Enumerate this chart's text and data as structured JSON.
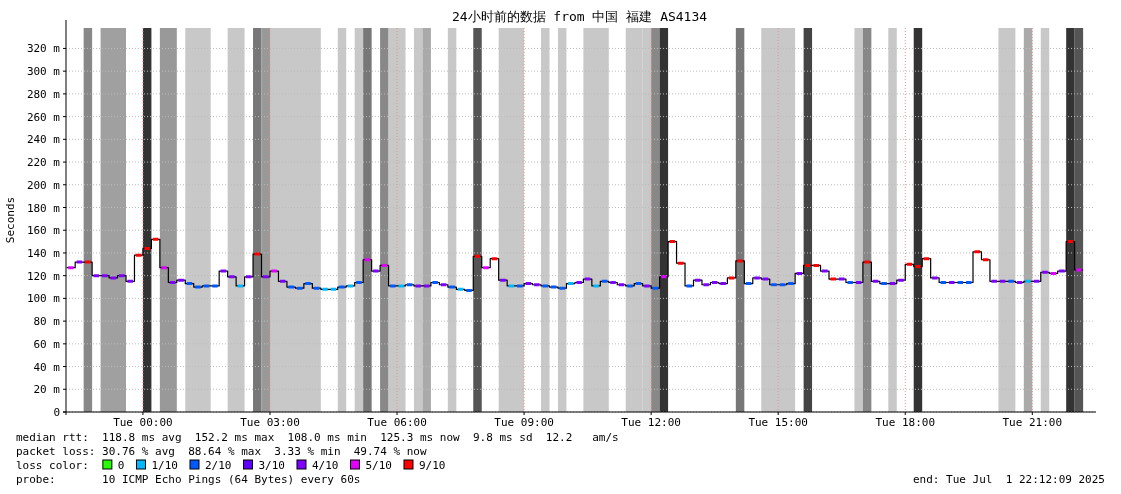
{
  "chart_data": {
    "type": "step",
    "title": "24小时前的数据 from 中国 福建 AS4134",
    "ylabel": "Seconds",
    "x": [
      "2025-06-30T22:12",
      "2025-06-30T22:24",
      "2025-06-30T22:36",
      "2025-06-30T22:48",
      "2025-06-30T23:00",
      "2025-06-30T23:12",
      "2025-06-30T23:24",
      "2025-06-30T23:36",
      "2025-06-30T23:48",
      "2025-07-01T00:00",
      "2025-07-01T00:12",
      "2025-07-01T00:24",
      "2025-07-01T00:36",
      "2025-07-01T00:48",
      "2025-07-01T01:00",
      "2025-07-01T01:12",
      "2025-07-01T01:24",
      "2025-07-01T01:36",
      "2025-07-01T01:48",
      "2025-07-01T02:00",
      "2025-07-01T02:12",
      "2025-07-01T02:24",
      "2025-07-01T02:36",
      "2025-07-01T02:48",
      "2025-07-01T03:00",
      "2025-07-01T03:12",
      "2025-07-01T03:24",
      "2025-07-01T03:36",
      "2025-07-01T03:48",
      "2025-07-01T04:00",
      "2025-07-01T04:12",
      "2025-07-01T04:24",
      "2025-07-01T04:36",
      "2025-07-01T04:48",
      "2025-07-01T05:00",
      "2025-07-01T05:12",
      "2025-07-01T05:24",
      "2025-07-01T05:36",
      "2025-07-01T05:48",
      "2025-07-01T06:00",
      "2025-07-01T06:12",
      "2025-07-01T06:24",
      "2025-07-01T06:36",
      "2025-07-01T06:48",
      "2025-07-01T07:00",
      "2025-07-01T07:12",
      "2025-07-01T07:24",
      "2025-07-01T07:36",
      "2025-07-01T07:48",
      "2025-07-01T08:00",
      "2025-07-01T08:12",
      "2025-07-01T08:24",
      "2025-07-01T08:36",
      "2025-07-01T08:48",
      "2025-07-01T09:00",
      "2025-07-01T09:12",
      "2025-07-01T09:24",
      "2025-07-01T09:36",
      "2025-07-01T09:48",
      "2025-07-01T10:00",
      "2025-07-01T10:12",
      "2025-07-01T10:24",
      "2025-07-01T10:36",
      "2025-07-01T10:48",
      "2025-07-01T11:00",
      "2025-07-01T11:12",
      "2025-07-01T11:24",
      "2025-07-01T11:36",
      "2025-07-01T11:48",
      "2025-07-01T12:00",
      "2025-07-01T12:12",
      "2025-07-01T12:24",
      "2025-07-01T12:36",
      "2025-07-01T12:48",
      "2025-07-01T13:00",
      "2025-07-01T13:12",
      "2025-07-01T13:24",
      "2025-07-01T13:36",
      "2025-07-01T13:48",
      "2025-07-01T14:00",
      "2025-07-01T14:12",
      "2025-07-01T14:24",
      "2025-07-01T14:36",
      "2025-07-01T14:48",
      "2025-07-01T15:00",
      "2025-07-01T15:12",
      "2025-07-01T15:24",
      "2025-07-01T15:36",
      "2025-07-01T15:48",
      "2025-07-01T16:00",
      "2025-07-01T16:12",
      "2025-07-01T16:24",
      "2025-07-01T16:36",
      "2025-07-01T16:48",
      "2025-07-01T17:00",
      "2025-07-01T17:12",
      "2025-07-01T17:24",
      "2025-07-01T17:36",
      "2025-07-01T17:48",
      "2025-07-01T18:00",
      "2025-07-01T18:12",
      "2025-07-01T18:24",
      "2025-07-01T18:36",
      "2025-07-01T18:48",
      "2025-07-01T19:00",
      "2025-07-01T19:12",
      "2025-07-01T19:24",
      "2025-07-01T19:36",
      "2025-07-01T19:48",
      "2025-07-01T20:00",
      "2025-07-01T20:12",
      "2025-07-01T20:24",
      "2025-07-01T20:36",
      "2025-07-01T20:48",
      "2025-07-01T21:00",
      "2025-07-01T21:12",
      "2025-07-01T21:24",
      "2025-07-01T21:36",
      "2025-07-01T21:48",
      "2025-07-01T22:00",
      "2025-07-01T22:12"
    ],
    "series": [
      {
        "color": "#000000",
        "values": [
          127,
          132,
          132,
          120,
          120,
          118,
          120,
          115,
          138,
          144,
          152,
          127,
          114,
          116,
          113,
          110,
          111,
          111,
          124,
          119,
          111,
          119,
          139,
          119,
          124,
          115,
          110,
          109,
          113,
          109,
          108,
          108,
          110,
          111,
          114,
          134,
          124,
          129,
          111,
          111,
          112,
          111,
          111,
          114,
          112,
          110,
          108,
          107,
          137,
          127,
          135,
          116,
          111,
          111,
          113,
          112,
          111,
          110,
          109,
          113,
          114,
          117,
          111,
          115,
          114,
          112,
          111,
          113,
          111,
          109,
          119,
          150,
          131,
          111,
          116,
          112,
          114,
          113,
          118,
          133,
          113,
          118,
          117,
          112,
          112,
          113,
          122,
          129,
          129,
          124,
          117,
          117,
          114,
          114,
          132,
          115,
          113,
          113,
          116,
          130,
          128,
          135,
          118,
          114,
          114,
          114,
          114,
          141,
          134,
          115,
          115,
          115,
          114,
          115,
          115,
          123,
          122,
          124,
          150,
          125,
          125
        ]
      },
      {
        "name": "0",
        "color": "#26ff00",
        "values": [
          null,
          null,
          null,
          null,
          null,
          null,
          null,
          null,
          null,
          null,
          null,
          null,
          null,
          null,
          null,
          null,
          null,
          null,
          null,
          null,
          null,
          null,
          null,
          null,
          null,
          null,
          null,
          null,
          null,
          null,
          null,
          null,
          null,
          null,
          null,
          null,
          null,
          null,
          null,
          null,
          null,
          null,
          null,
          null,
          null,
          null,
          null,
          null,
          null,
          null,
          null,
          null,
          null,
          null,
          null,
          null,
          null,
          null,
          null,
          null,
          null,
          null,
          null,
          null,
          null,
          null,
          null,
          null,
          null,
          null,
          null,
          null,
          null,
          null,
          null,
          null,
          null,
          null,
          null,
          null,
          null,
          null,
          null,
          null,
          null,
          null,
          null,
          null,
          null,
          null,
          null,
          null,
          null,
          null,
          null,
          null,
          null,
          null,
          null,
          null,
          null,
          null,
          null,
          null,
          null,
          null,
          null,
          null,
          null,
          null,
          null,
          null,
          null,
          null,
          null,
          null,
          null,
          null,
          null,
          null,
          null
        ]
      },
      {
        "name": "1/10",
        "color": "#00b8ff",
        "x": [
          "2025-07-01T02:18",
          "2025-07-01T04:18",
          "2025-07-01T04:30",
          "2025-07-01T04:54",
          "2025-07-01T06:06",
          "2025-07-01T07:30",
          "2025-07-01T08:42",
          "2025-07-01T10:06",
          "2025-07-01T10:42",
          "2025-07-01T20:54"
        ],
        "values": [
          111,
          108,
          108,
          111,
          111,
          108,
          111,
          113,
          111,
          115
        ]
      },
      {
        "name": "2/10",
        "color": "#0059ff",
        "x": [
          "2025-07-01T01:06",
          "2025-07-01T01:18",
          "2025-07-01T01:30",
          "2025-07-01T01:42",
          "2025-07-01T03:30",
          "2025-07-01T03:42",
          "2025-07-01T03:54",
          "2025-07-01T04:06",
          "2025-07-01T04:42",
          "2025-07-01T05:06",
          "2025-07-01T05:54",
          "2025-07-01T06:18",
          "2025-07-01T06:54",
          "2025-07-01T07:18",
          "2025-07-01T07:42",
          "2025-07-01T08:54",
          "2025-07-01T09:30",
          "2025-07-01T09:42",
          "2025-07-01T09:54",
          "2025-07-01T10:54",
          "2025-07-01T11:30",
          "2025-07-01T11:42",
          "2025-07-01T12:06",
          "2025-07-01T12:54",
          "2025-07-01T14:18",
          "2025-07-01T14:54",
          "2025-07-01T15:06",
          "2025-07-01T15:18",
          "2025-07-01T16:42",
          "2025-07-01T17:30",
          "2025-07-01T18:54",
          "2025-07-01T19:18",
          "2025-07-01T19:30",
          "2025-07-01T20:30"
        ],
        "values": [
          113,
          110,
          111,
          111,
          110,
          109,
          113,
          109,
          110,
          114,
          111,
          112,
          114,
          110,
          107,
          111,
          111,
          110,
          109,
          115,
          111,
          113,
          109,
          111,
          113,
          112,
          112,
          113,
          114,
          113,
          114,
          114,
          114,
          115
        ]
      },
      {
        "name": "3/10",
        "color": "#5e00ff",
        "values": [
          null,
          null,
          null,
          null,
          null,
          null,
          null,
          null,
          null,
          null,
          null,
          null,
          null,
          null,
          null,
          null,
          null,
          null,
          null,
          null,
          null,
          null,
          null,
          null,
          null,
          null,
          null,
          null,
          null,
          null,
          null,
          null,
          null,
          null,
          null,
          null,
          null,
          null,
          null,
          null,
          null,
          null,
          null,
          null,
          null,
          null,
          null,
          null,
          null,
          null,
          null,
          null,
          null,
          null,
          null,
          null,
          null,
          null,
          null,
          null,
          null,
          null,
          null,
          null,
          null,
          null,
          null,
          null,
          null,
          null,
          null,
          null,
          null,
          null,
          null,
          null,
          null,
          null,
          null,
          null,
          null,
          null,
          null,
          null,
          null,
          null,
          null,
          null,
          null,
          null,
          null,
          null,
          null,
          null,
          null,
          null,
          null,
          null,
          null,
          null,
          null,
          null,
          null,
          null,
          null,
          null,
          null,
          null,
          null,
          null,
          null,
          null,
          null,
          null,
          null,
          null,
          null,
          null,
          null,
          null,
          null
        ]
      },
      {
        "name": "4/10",
        "color": "#7e00ff",
        "x": [
          "2025-06-30T22:30",
          "2025-06-30T22:54",
          "2025-06-30T23:06",
          "2025-06-30T23:18",
          "2025-06-30T23:30",
          "2025-06-30T23:42",
          "2025-07-01T00:42",
          "2025-07-01T00:54",
          "2025-07-01T01:54",
          "2025-07-01T02:06",
          "2025-07-01T02:30",
          "2025-07-01T02:54",
          "2025-07-01T03:18",
          "2025-07-01T05:30",
          "2025-07-01T06:30",
          "2025-07-01T06:42",
          "2025-07-01T07:06",
          "2025-07-01T08:30",
          "2025-07-01T09:06",
          "2025-07-01T09:18",
          "2025-07-01T10:18",
          "2025-07-01T10:30",
          "2025-07-01T11:06",
          "2025-07-01T11:18",
          "2025-07-01T11:54",
          "2025-07-01T13:06",
          "2025-07-01T13:18",
          "2025-07-01T13:30",
          "2025-07-01T13:42",
          "2025-07-01T14:30",
          "2025-07-01T14:42",
          "2025-07-01T15:30",
          "2025-07-01T16:06",
          "2025-07-01T16:30",
          "2025-07-01T16:54",
          "2025-07-01T17:18",
          "2025-07-01T17:42",
          "2025-07-01T17:54",
          "2025-07-01T18:42",
          "2025-07-01T19:06",
          "2025-07-01T20:06",
          "2025-07-01T20:18",
          "2025-07-01T20:42",
          "2025-07-01T21:06",
          "2025-07-01T21:18",
          "2025-07-01T21:42"
        ],
        "values": [
          132,
          120,
          120,
          118,
          120,
          115,
          114,
          116,
          124,
          119,
          119,
          119,
          115,
          124,
          111,
          111,
          112,
          116,
          113,
          112,
          114,
          117,
          114,
          112,
          111,
          116,
          112,
          114,
          113,
          118,
          117,
          122,
          124,
          117,
          114,
          115,
          113,
          116,
          118,
          114,
          115,
          115,
          114,
          115,
          123,
          124
        ]
      },
      {
        "name": "5/10",
        "color": "#e000ff",
        "x": [
          "2025-06-30T22:18",
          "2025-07-01T00:30",
          "2025-07-01T03:06",
          "2025-07-01T05:18",
          "2025-07-01T05:42",
          "2025-07-01T08:06",
          "2025-07-01T12:18",
          "2025-07-01T21:30",
          "2025-07-01T22:06"
        ],
        "values": [
          127,
          127,
          124,
          134,
          129,
          127,
          119,
          122,
          125
        ]
      },
      {
        "name": "9/10",
        "color": "#ff0000",
        "x": [
          "2025-06-30T22:42",
          "2025-06-30T23:54",
          "2025-07-01T00:06",
          "2025-07-01T00:18",
          "2025-07-01T02:42",
          "2025-07-01T07:54",
          "2025-07-01T08:18",
          "2025-07-01T12:30",
          "2025-07-01T12:42",
          "2025-07-01T13:54",
          "2025-07-01T14:06",
          "2025-07-01T15:42",
          "2025-07-01T15:54",
          "2025-07-01T16:18",
          "2025-07-01T17:06",
          "2025-07-01T18:06",
          "2025-07-01T18:18",
          "2025-07-01T18:30",
          "2025-07-01T19:42",
          "2025-07-01T19:54",
          "2025-07-01T21:54"
        ],
        "values": [
          132,
          138,
          144,
          152,
          139,
          137,
          135,
          150,
          131,
          118,
          133,
          129,
          129,
          117,
          132,
          130,
          128,
          135,
          141,
          134,
          150
        ]
      }
    ],
    "bands": [
      {
        "axis": "x",
        "from": "2025-06-30T22:36",
        "to": "2025-06-30T22:48",
        "color": "#888888"
      },
      {
        "axis": "x",
        "from": "2025-06-30T23:00",
        "to": "2025-06-30T23:36",
        "color": "#a0a0a0"
      },
      {
        "axis": "x",
        "from": "2025-07-01T00:00",
        "to": "2025-07-01T00:12",
        "color": "#333333"
      },
      {
        "axis": "x",
        "from": "2025-07-01T00:24",
        "to": "2025-07-01T00:48",
        "color": "#999999"
      },
      {
        "axis": "x",
        "from": "2025-07-01T01:00",
        "to": "2025-07-01T01:36",
        "color": "#c8c8c8"
      },
      {
        "axis": "x",
        "from": "2025-07-01T02:00",
        "to": "2025-07-01T02:24",
        "color": "#c8c8c8"
      },
      {
        "axis": "x",
        "from": "2025-07-01T02:36",
        "to": "2025-07-01T02:48",
        "color": "#777777"
      },
      {
        "axis": "x",
        "from": "2025-07-01T02:48",
        "to": "2025-07-01T03:00",
        "color": "#999999"
      },
      {
        "axis": "x",
        "from": "2025-07-01T03:00",
        "to": "2025-07-01T04:12",
        "color": "#c8c8c8"
      },
      {
        "axis": "x",
        "from": "2025-07-01T04:36",
        "to": "2025-07-01T04:48",
        "color": "#c8c8c8"
      },
      {
        "axis": "x",
        "from": "2025-07-01T05:00",
        "to": "2025-07-01T05:12",
        "color": "#c8c8c8"
      },
      {
        "axis": "x",
        "from": "2025-07-01T05:12",
        "to": "2025-07-01T05:24",
        "color": "#777777"
      },
      {
        "axis": "x",
        "from": "2025-07-01T05:36",
        "to": "2025-07-01T05:48",
        "color": "#888888"
      },
      {
        "axis": "x",
        "from": "2025-07-01T05:48",
        "to": "2025-07-01T06:12",
        "color": "#c8c8c8"
      },
      {
        "axis": "x",
        "from": "2025-07-01T06:24",
        "to": "2025-07-01T06:36",
        "color": "#c8c8c8"
      },
      {
        "axis": "x",
        "from": "2025-07-01T06:36",
        "to": "2025-07-01T06:48",
        "color": "#aaaaaa"
      },
      {
        "axis": "x",
        "from": "2025-07-01T07:12",
        "to": "2025-07-01T07:24",
        "color": "#c8c8c8"
      },
      {
        "axis": "x",
        "from": "2025-07-01T07:48",
        "to": "2025-07-01T08:00",
        "color": "#555555"
      },
      {
        "axis": "x",
        "from": "2025-07-01T08:24",
        "to": "2025-07-01T09:00",
        "color": "#c8c8c8"
      },
      {
        "axis": "x",
        "from": "2025-07-01T09:24",
        "to": "2025-07-01T09:36",
        "color": "#c8c8c8"
      },
      {
        "axis": "x",
        "from": "2025-07-01T09:48",
        "to": "2025-07-01T10:00",
        "color": "#c8c8c8"
      },
      {
        "axis": "x",
        "from": "2025-07-01T10:24",
        "to": "2025-07-01T11:00",
        "color": "#c8c8c8"
      },
      {
        "axis": "x",
        "from": "2025-07-01T11:24",
        "to": "2025-07-01T11:48",
        "color": "#c8c8c8"
      },
      {
        "axis": "x",
        "from": "2025-07-01T11:48",
        "to": "2025-07-01T12:00",
        "color": "#c8c8c8"
      },
      {
        "axis": "x",
        "from": "2025-07-01T12:00",
        "to": "2025-07-01T12:12",
        "color": "#888888"
      },
      {
        "axis": "x",
        "from": "2025-07-01T12:12",
        "to": "2025-07-01T12:24",
        "color": "#333333"
      },
      {
        "axis": "x",
        "from": "2025-07-01T14:00",
        "to": "2025-07-01T14:12",
        "color": "#777777"
      },
      {
        "axis": "x",
        "from": "2025-07-01T14:36",
        "to": "2025-07-01T15:24",
        "color": "#c8c8c8"
      },
      {
        "axis": "x",
        "from": "2025-07-01T15:36",
        "to": "2025-07-01T15:48",
        "color": "#444444"
      },
      {
        "axis": "x",
        "from": "2025-07-01T16:48",
        "to": "2025-07-01T17:00",
        "color": "#c8c8c8"
      },
      {
        "axis": "x",
        "from": "2025-07-01T17:00",
        "to": "2025-07-01T17:12",
        "color": "#888888"
      },
      {
        "axis": "x",
        "from": "2025-07-01T17:36",
        "to": "2025-07-01T17:48",
        "color": "#c8c8c8"
      },
      {
        "axis": "x",
        "from": "2025-07-01T18:12",
        "to": "2025-07-01T18:24",
        "color": "#333333"
      },
      {
        "axis": "x",
        "from": "2025-07-01T20:12",
        "to": "2025-07-01T20:36",
        "color": "#c8c8c8"
      },
      {
        "axis": "x",
        "from": "2025-07-01T20:48",
        "to": "2025-07-01T21:00",
        "color": "#aaaaaa"
      },
      {
        "axis": "x",
        "from": "2025-07-01T21:12",
        "to": "2025-07-01T21:24",
        "color": "#c8c8c8"
      },
      {
        "axis": "x",
        "from": "2025-07-01T21:48",
        "to": "2025-07-01T22:00",
        "color": "#333333"
      },
      {
        "axis": "x",
        "from": "2025-07-01T22:00",
        "to": "2025-07-01T22:12",
        "color": "#555555"
      }
    ],
    "xlim": [
      "2025-06-30T22:11",
      "2025-07-01T22:26"
    ],
    "xticks": [
      {
        "value": "2025-07-01T00:00",
        "label": "Tue 00:00"
      },
      {
        "value": "2025-07-01T03:00",
        "label": "Tue 03:00"
      },
      {
        "value": "2025-07-01T06:00",
        "label": "Tue 06:00"
      },
      {
        "value": "2025-07-01T09:00",
        "label": "Tue 09:00"
      },
      {
        "value": "2025-07-01T12:00",
        "label": "Tue 12:00"
      },
      {
        "value": "2025-07-01T15:00",
        "label": "Tue 15:00"
      },
      {
        "value": "2025-07-01T18:00",
        "label": "Tue 18:00"
      },
      {
        "value": "2025-07-01T21:00",
        "label": "Tue 21:00"
      }
    ],
    "ylim": [
      0,
      338
    ],
    "yticks": [
      0,
      {
        "value": 20,
        "label": "20 m"
      },
      {
        "value": 40,
        "label": "40 m"
      },
      {
        "value": 60,
        "label": "60 m"
      },
      {
        "value": 80,
        "label": "80 m"
      },
      {
        "value": 100,
        "label": "100 m"
      },
      {
        "value": 120,
        "label": "120 m"
      },
      {
        "value": 140,
        "label": "140 m"
      },
      {
        "value": 160,
        "label": "160 m"
      },
      {
        "value": 180,
        "label": "180 m"
      },
      {
        "value": 200,
        "label": "200 m"
      },
      {
        "value": 220,
        "label": "220 m"
      },
      {
        "value": 240,
        "label": "240 m"
      },
      {
        "value": 260,
        "label": "260 m"
      },
      {
        "value": 280,
        "label": "280 m"
      },
      {
        "value": 300,
        "label": "300 m"
      },
      {
        "value": 320,
        "label": "320 m"
      }
    ],
    "grid": true,
    "legend": "bottom",
    "legend_title": "loss color:",
    "annotations": [
      "median rtt:  118.8 ms avg  152.2 ms max  108.0 ms min  125.3 ms now  9.8 ms sd  12.2   am/s",
      "packet loss: 30.76 % avg  88.64 % max  3.33 % min  49.74 % now",
      "probe:       10 ICMP Echo Pings (64 Bytes) every 60s",
      "end: Tue Jul  1 22:12:09 2025"
    ]
  }
}
